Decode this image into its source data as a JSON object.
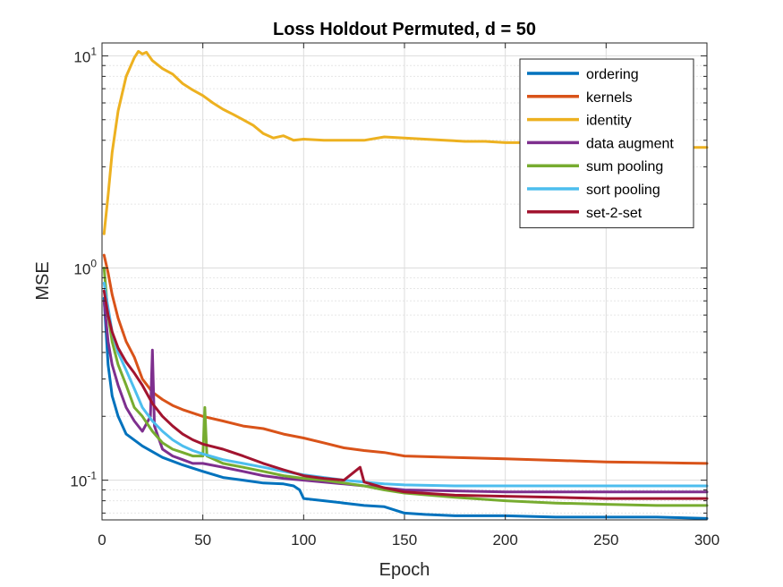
{
  "chart_data": {
    "type": "line",
    "title": "Loss Holdout Permuted, d = 50",
    "xlabel": "Epoch",
    "ylabel": "MSE",
    "xlim": [
      0,
      300
    ],
    "ylim": [
      0.065,
      11.5
    ],
    "yscale": "log",
    "grid": true,
    "minor_grid": true,
    "legend_position": "top-right",
    "x_ticks": [
      0,
      50,
      100,
      150,
      200,
      250,
      300
    ],
    "x_tick_labels": [
      "0",
      "50",
      "100",
      "150",
      "200",
      "250",
      "300"
    ],
    "y_ticks": [
      0.1,
      1,
      10
    ],
    "y_tick_labels": [
      {
        "base": "10",
        "exp": "-1"
      },
      {
        "base": "10",
        "exp": "0"
      },
      {
        "base": "10",
        "exp": "1"
      }
    ],
    "series": [
      {
        "name": "ordering",
        "color": "#0072BD",
        "points": [
          [
            1,
            0.72
          ],
          [
            3,
            0.35
          ],
          [
            5,
            0.25
          ],
          [
            8,
            0.2
          ],
          [
            12,
            0.165
          ],
          [
            20,
            0.145
          ],
          [
            30,
            0.128
          ],
          [
            40,
            0.118
          ],
          [
            50,
            0.11
          ],
          [
            60,
            0.103
          ],
          [
            70,
            0.1
          ],
          [
            80,
            0.097
          ],
          [
            90,
            0.096
          ],
          [
            95,
            0.094
          ],
          [
            98,
            0.09
          ],
          [
            100,
            0.082
          ],
          [
            110,
            0.08
          ],
          [
            120,
            0.078
          ],
          [
            130,
            0.076
          ],
          [
            140,
            0.075
          ],
          [
            150,
            0.07
          ],
          [
            160,
            0.069
          ],
          [
            175,
            0.068
          ],
          [
            200,
            0.068
          ],
          [
            225,
            0.067
          ],
          [
            250,
            0.067
          ],
          [
            275,
            0.067
          ],
          [
            300,
            0.066
          ]
        ]
      },
      {
        "name": "kernels",
        "color": "#D95319",
        "points": [
          [
            1,
            1.15
          ],
          [
            3,
            0.95
          ],
          [
            5,
            0.75
          ],
          [
            8,
            0.58
          ],
          [
            12,
            0.45
          ],
          [
            16,
            0.38
          ],
          [
            20,
            0.3
          ],
          [
            25,
            0.26
          ],
          [
            30,
            0.24
          ],
          [
            35,
            0.225
          ],
          [
            40,
            0.215
          ],
          [
            50,
            0.2
          ],
          [
            60,
            0.19
          ],
          [
            70,
            0.18
          ],
          [
            80,
            0.175
          ],
          [
            90,
            0.165
          ],
          [
            100,
            0.158
          ],
          [
            110,
            0.15
          ],
          [
            120,
            0.142
          ],
          [
            130,
            0.138
          ],
          [
            140,
            0.135
          ],
          [
            150,
            0.13
          ],
          [
            175,
            0.128
          ],
          [
            200,
            0.126
          ],
          [
            225,
            0.124
          ],
          [
            250,
            0.122
          ],
          [
            275,
            0.121
          ],
          [
            300,
            0.12
          ]
        ]
      },
      {
        "name": "identity",
        "color": "#EDB120",
        "points": [
          [
            1,
            1.45
          ],
          [
            3,
            2.2
          ],
          [
            5,
            3.5
          ],
          [
            8,
            5.5
          ],
          [
            12,
            8.0
          ],
          [
            16,
            9.8
          ],
          [
            18,
            10.5
          ],
          [
            20,
            10.2
          ],
          [
            22,
            10.4
          ],
          [
            25,
            9.5
          ],
          [
            30,
            8.7
          ],
          [
            35,
            8.2
          ],
          [
            40,
            7.4
          ],
          [
            45,
            6.9
          ],
          [
            50,
            6.5
          ],
          [
            55,
            6.0
          ],
          [
            60,
            5.6
          ],
          [
            65,
            5.3
          ],
          [
            70,
            5.0
          ],
          [
            75,
            4.7
          ],
          [
            80,
            4.3
          ],
          [
            85,
            4.1
          ],
          [
            90,
            4.2
          ],
          [
            95,
            4.0
          ],
          [
            100,
            4.05
          ],
          [
            110,
            4.0
          ],
          [
            120,
            4.0
          ],
          [
            130,
            4.0
          ],
          [
            140,
            4.15
          ],
          [
            150,
            4.1
          ],
          [
            160,
            4.05
          ],
          [
            170,
            4.0
          ],
          [
            180,
            3.95
          ],
          [
            190,
            3.95
          ],
          [
            200,
            3.9
          ],
          [
            210,
            3.9
          ],
          [
            220,
            3.85
          ],
          [
            230,
            3.85
          ],
          [
            240,
            3.8
          ],
          [
            250,
            3.8
          ],
          [
            260,
            3.75
          ],
          [
            270,
            3.75
          ],
          [
            280,
            3.7
          ],
          [
            290,
            3.7
          ],
          [
            300,
            3.7
          ]
        ]
      },
      {
        "name": "data augment",
        "color": "#7E2F8E",
        "points": [
          [
            1,
            0.7
          ],
          [
            3,
            0.45
          ],
          [
            5,
            0.35
          ],
          [
            8,
            0.28
          ],
          [
            12,
            0.22
          ],
          [
            16,
            0.19
          ],
          [
            20,
            0.17
          ],
          [
            24,
            0.2
          ],
          [
            25,
            0.41
          ],
          [
            26,
            0.18
          ],
          [
            30,
            0.14
          ],
          [
            35,
            0.13
          ],
          [
            40,
            0.125
          ],
          [
            45,
            0.12
          ],
          [
            50,
            0.12
          ],
          [
            60,
            0.115
          ],
          [
            70,
            0.11
          ],
          [
            80,
            0.105
          ],
          [
            90,
            0.102
          ],
          [
            100,
            0.1
          ],
          [
            110,
            0.098
          ],
          [
            120,
            0.096
          ],
          [
            130,
            0.094
          ],
          [
            140,
            0.092
          ],
          [
            150,
            0.09
          ],
          [
            175,
            0.089
          ],
          [
            200,
            0.088
          ],
          [
            225,
            0.088
          ],
          [
            250,
            0.088
          ],
          [
            275,
            0.088
          ],
          [
            300,
            0.088
          ]
        ]
      },
      {
        "name": "sum pooling",
        "color": "#77AC30",
        "points": [
          [
            1,
            1.0
          ],
          [
            3,
            0.6
          ],
          [
            5,
            0.45
          ],
          [
            8,
            0.35
          ],
          [
            12,
            0.28
          ],
          [
            16,
            0.22
          ],
          [
            20,
            0.2
          ],
          [
            25,
            0.17
          ],
          [
            30,
            0.15
          ],
          [
            35,
            0.14
          ],
          [
            40,
            0.135
          ],
          [
            45,
            0.13
          ],
          [
            50,
            0.13
          ],
          [
            51,
            0.22
          ],
          [
            52,
            0.13
          ],
          [
            60,
            0.12
          ],
          [
            70,
            0.115
          ],
          [
            80,
            0.11
          ],
          [
            90,
            0.105
          ],
          [
            100,
            0.102
          ],
          [
            110,
            0.1
          ],
          [
            120,
            0.097
          ],
          [
            130,
            0.094
          ],
          [
            140,
            0.09
          ],
          [
            150,
            0.087
          ],
          [
            175,
            0.083
          ],
          [
            200,
            0.08
          ],
          [
            225,
            0.078
          ],
          [
            250,
            0.077
          ],
          [
            275,
            0.076
          ],
          [
            300,
            0.076
          ]
        ]
      },
      {
        "name": "sort pooling",
        "color": "#4DBEEE",
        "points": [
          [
            1,
            0.85
          ],
          [
            3,
            0.65
          ],
          [
            5,
            0.5
          ],
          [
            8,
            0.4
          ],
          [
            12,
            0.33
          ],
          [
            16,
            0.27
          ],
          [
            20,
            0.22
          ],
          [
            25,
            0.19
          ],
          [
            30,
            0.17
          ],
          [
            35,
            0.155
          ],
          [
            40,
            0.145
          ],
          [
            45,
            0.138
          ],
          [
            50,
            0.133
          ],
          [
            60,
            0.125
          ],
          [
            70,
            0.12
          ],
          [
            80,
            0.115
          ],
          [
            90,
            0.11
          ],
          [
            100,
            0.106
          ],
          [
            110,
            0.103
          ],
          [
            120,
            0.1
          ],
          [
            130,
            0.098
          ],
          [
            140,
            0.096
          ],
          [
            150,
            0.095
          ],
          [
            175,
            0.094
          ],
          [
            200,
            0.094
          ],
          [
            225,
            0.094
          ],
          [
            250,
            0.094
          ],
          [
            275,
            0.094
          ],
          [
            300,
            0.094
          ]
        ]
      },
      {
        "name": "set-2-set",
        "color": "#A2142F",
        "points": [
          [
            1,
            0.78
          ],
          [
            3,
            0.6
          ],
          [
            5,
            0.5
          ],
          [
            8,
            0.42
          ],
          [
            12,
            0.36
          ],
          [
            16,
            0.32
          ],
          [
            20,
            0.28
          ],
          [
            25,
            0.23
          ],
          [
            30,
            0.2
          ],
          [
            35,
            0.18
          ],
          [
            40,
            0.165
          ],
          [
            45,
            0.155
          ],
          [
            50,
            0.148
          ],
          [
            60,
            0.14
          ],
          [
            70,
            0.13
          ],
          [
            80,
            0.12
          ],
          [
            90,
            0.112
          ],
          [
            100,
            0.105
          ],
          [
            110,
            0.102
          ],
          [
            120,
            0.1
          ],
          [
            128,
            0.115
          ],
          [
            130,
            0.098
          ],
          [
            140,
            0.092
          ],
          [
            150,
            0.088
          ],
          [
            175,
            0.085
          ],
          [
            200,
            0.084
          ],
          [
            225,
            0.083
          ],
          [
            250,
            0.082
          ],
          [
            275,
            0.082
          ],
          [
            300,
            0.082
          ]
        ]
      }
    ]
  }
}
